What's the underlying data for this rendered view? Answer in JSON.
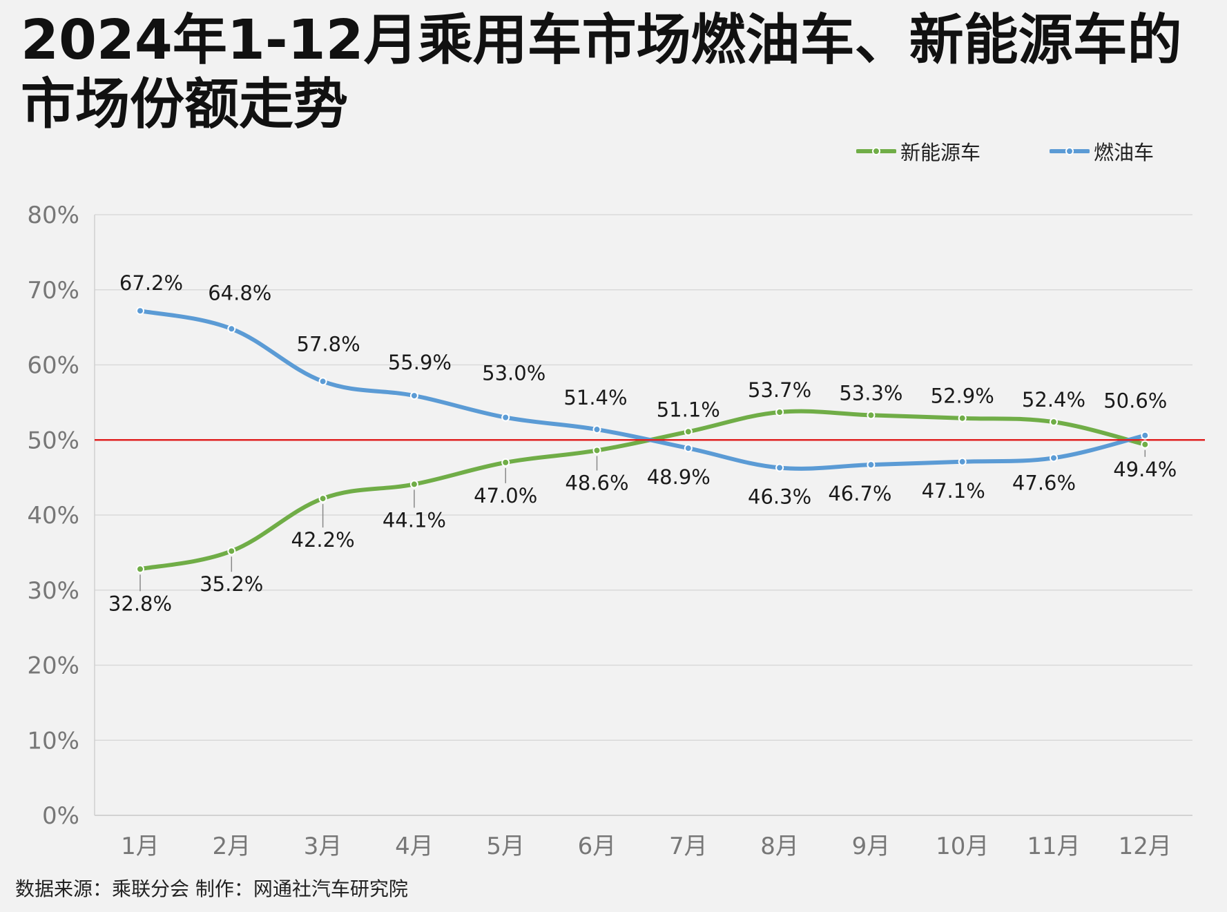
{
  "title": "2024年1-12月乘用车市场燃油车、新能源车的市场份额走势",
  "source": "数据来源：乘联分会  制作：网通社汽车研究院",
  "colors": {
    "nev": "#70ad47",
    "ice": "#5b9bd5",
    "ref": "#e02020",
    "grid": "#d9d9d9"
  },
  "legend": [
    {
      "name": "新能源车",
      "color": "#70ad47"
    },
    {
      "name": "燃油车",
      "color": "#5b9bd5"
    }
  ],
  "chart_data": {
    "type": "line",
    "title": "2024年1-12月乘用车市场燃油车、新能源车的市场份额走势",
    "categories": [
      "1月",
      "2月",
      "3月",
      "4月",
      "5月",
      "6月",
      "7月",
      "8月",
      "9月",
      "10月",
      "11月",
      "12月"
    ],
    "y_ticks": [
      "0%",
      "10%",
      "20%",
      "30%",
      "40%",
      "50%",
      "60%",
      "70%",
      "80%"
    ],
    "ylim": [
      0,
      80
    ],
    "reference_line": 50,
    "grid": true,
    "legend_position": "top-right",
    "series": [
      {
        "name": "新能源车",
        "color": "#70ad47",
        "values": [
          32.8,
          35.2,
          42.2,
          44.1,
          47.0,
          48.6,
          51.1,
          53.7,
          53.3,
          52.9,
          52.4,
          49.4
        ],
        "labels": [
          "32.8%",
          "35.2%",
          "42.2%",
          "44.1%",
          "47.0%",
          "48.6%",
          "51.1%",
          "53.7%",
          "53.3%",
          "52.9%",
          "52.4%",
          "49.4%"
        ]
      },
      {
        "name": "燃油车",
        "color": "#5b9bd5",
        "values": [
          67.2,
          64.8,
          57.8,
          55.9,
          53.0,
          51.4,
          48.9,
          46.3,
          46.7,
          47.1,
          47.6,
          50.6
        ],
        "labels": [
          "67.2%",
          "64.8%",
          "57.8%",
          "55.9%",
          "53.0%",
          "51.4%",
          "48.9%",
          "46.3%",
          "46.7%",
          "47.1%",
          "47.6%",
          "50.6%"
        ]
      }
    ]
  }
}
